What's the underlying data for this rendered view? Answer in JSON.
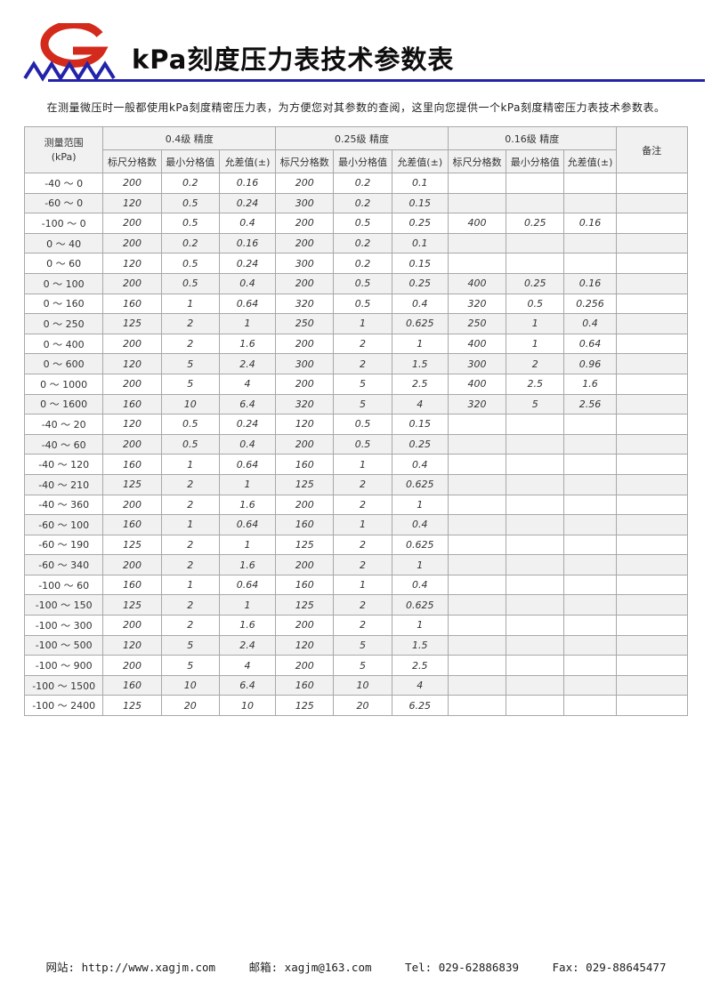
{
  "page": {
    "title": "kPa刻度压力表技术参数表",
    "intro": "在测量微压时一般都使用kPa刻度精密压力表，为方便您对其参数的查阅，这里向您提供一个kPa刻度精密压力表技术参数表。"
  },
  "logo": {
    "letter": "G"
  },
  "table": {
    "range_header": [
      "测量范围",
      "(kPa)"
    ],
    "groups": [
      "0.4级 精度",
      "0.25级 精度",
      "0.16级 精度"
    ],
    "sub_headers": [
      "标尺分格数",
      "最小分格值",
      "允差值(±)"
    ],
    "remark_header": "备注",
    "rows": [
      {
        "range": "-40 ～ 0",
        "values": [
          "200",
          "0.2",
          "0.16",
          "200",
          "0.2",
          "0.1",
          "",
          "",
          ""
        ],
        "remark": ""
      },
      {
        "range": "-60 ～ 0",
        "values": [
          "120",
          "0.5",
          "0.24",
          "300",
          "0.2",
          "0.15",
          "",
          "",
          ""
        ],
        "remark": ""
      },
      {
        "range": "-100 ～ 0",
        "values": [
          "200",
          "0.5",
          "0.4",
          "200",
          "0.5",
          "0.25",
          "400",
          "0.25",
          "0.16"
        ],
        "remark": ""
      },
      {
        "range": "0 ～ 40",
        "values": [
          "200",
          "0.2",
          "0.16",
          "200",
          "0.2",
          "0.1",
          "",
          "",
          ""
        ],
        "remark": ""
      },
      {
        "range": "0 ～ 60",
        "values": [
          "120",
          "0.5",
          "0.24",
          "300",
          "0.2",
          "0.15",
          "",
          "",
          ""
        ],
        "remark": ""
      },
      {
        "range": "0 ～ 100",
        "values": [
          "200",
          "0.5",
          "0.4",
          "200",
          "0.5",
          "0.25",
          "400",
          "0.25",
          "0.16"
        ],
        "remark": ""
      },
      {
        "range": "0 ～ 160",
        "values": [
          "160",
          "1",
          "0.64",
          "320",
          "0.5",
          "0.4",
          "320",
          "0.5",
          "0.256"
        ],
        "remark": ""
      },
      {
        "range": "0 ～ 250",
        "values": [
          "125",
          "2",
          "1",
          "250",
          "1",
          "0.625",
          "250",
          "1",
          "0.4"
        ],
        "remark": ""
      },
      {
        "range": "0 ～ 400",
        "values": [
          "200",
          "2",
          "1.6",
          "200",
          "2",
          "1",
          "400",
          "1",
          "0.64"
        ],
        "remark": ""
      },
      {
        "range": "0 ～ 600",
        "values": [
          "120",
          "5",
          "2.4",
          "300",
          "2",
          "1.5",
          "300",
          "2",
          "0.96"
        ],
        "remark": ""
      },
      {
        "range": "0 ～ 1000",
        "values": [
          "200",
          "5",
          "4",
          "200",
          "5",
          "2.5",
          "400",
          "2.5",
          "1.6"
        ],
        "remark": ""
      },
      {
        "range": "0 ～ 1600",
        "values": [
          "160",
          "10",
          "6.4",
          "320",
          "5",
          "4",
          "320",
          "5",
          "2.56"
        ],
        "remark": ""
      },
      {
        "range": "-40 ～ 20",
        "values": [
          "120",
          "0.5",
          "0.24",
          "120",
          "0.5",
          "0.15",
          "",
          "",
          ""
        ],
        "remark": ""
      },
      {
        "range": "-40 ～ 60",
        "values": [
          "200",
          "0.5",
          "0.4",
          "200",
          "0.5",
          "0.25",
          "",
          "",
          ""
        ],
        "remark": ""
      },
      {
        "range": "-40 ～ 120",
        "values": [
          "160",
          "1",
          "0.64",
          "160",
          "1",
          "0.4",
          "",
          "",
          ""
        ],
        "remark": ""
      },
      {
        "range": "-40 ～ 210",
        "values": [
          "125",
          "2",
          "1",
          "125",
          "2",
          "0.625",
          "",
          "",
          ""
        ],
        "remark": ""
      },
      {
        "range": "-40 ～ 360",
        "values": [
          "200",
          "2",
          "1.6",
          "200",
          "2",
          "1",
          "",
          "",
          ""
        ],
        "remark": ""
      },
      {
        "range": "-60 ～ 100",
        "values": [
          "160",
          "1",
          "0.64",
          "160",
          "1",
          "0.4",
          "",
          "",
          ""
        ],
        "remark": ""
      },
      {
        "range": "-60 ～ 190",
        "values": [
          "125",
          "2",
          "1",
          "125",
          "2",
          "0.625",
          "",
          "",
          ""
        ],
        "remark": ""
      },
      {
        "range": "-60 ～ 340",
        "values": [
          "200",
          "2",
          "1.6",
          "200",
          "2",
          "1",
          "",
          "",
          ""
        ],
        "remark": ""
      },
      {
        "range": "-100 ～ 60",
        "values": [
          "160",
          "1",
          "0.64",
          "160",
          "1",
          "0.4",
          "",
          "",
          ""
        ],
        "remark": ""
      },
      {
        "range": "-100 ～ 150",
        "values": [
          "125",
          "2",
          "1",
          "125",
          "2",
          "0.625",
          "",
          "",
          ""
        ],
        "remark": ""
      },
      {
        "range": "-100 ～ 300",
        "values": [
          "200",
          "2",
          "1.6",
          "200",
          "2",
          "1",
          "",
          "",
          ""
        ],
        "remark": ""
      },
      {
        "range": "-100 ～ 500",
        "values": [
          "120",
          "5",
          "2.4",
          "120",
          "5",
          "1.5",
          "",
          "",
          ""
        ],
        "remark": ""
      },
      {
        "range": "-100 ～ 900",
        "values": [
          "200",
          "5",
          "4",
          "200",
          "5",
          "2.5",
          "",
          "",
          ""
        ],
        "remark": ""
      },
      {
        "range": "-100 ～ 1500",
        "values": [
          "160",
          "10",
          "6.4",
          "160",
          "10",
          "4",
          "",
          "",
          ""
        ],
        "remark": ""
      },
      {
        "range": "-100 ～ 2400",
        "values": [
          "125",
          "20",
          "10",
          "125",
          "20",
          "6.25",
          "",
          "",
          ""
        ],
        "remark": ""
      }
    ]
  },
  "footer": {
    "website_label": "网站:",
    "website": "http://www.xagjm.com",
    "email_label": "邮箱:",
    "email": "xagjm@163.com",
    "tel_label": "Tel:",
    "tel": "029-62886839",
    "fax_label": "Fax:",
    "fax": "029-88645477"
  },
  "colors": {
    "accent_blue": "#2323aa",
    "logo_red": "#d42a1c",
    "stripe": "#f1f1f1",
    "border": "#a8a8a8"
  }
}
